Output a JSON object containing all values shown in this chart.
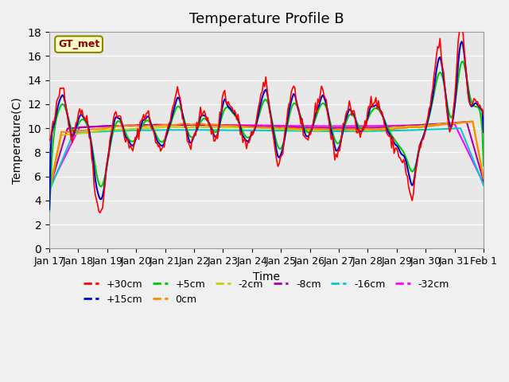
{
  "title": "Temperature Profile B",
  "xlabel": "Time",
  "ylabel": "Temperature(C)",
  "ylim": [
    0,
    18
  ],
  "yticks": [
    0,
    2,
    4,
    6,
    8,
    10,
    12,
    14,
    16,
    18
  ],
  "x_labels": [
    "Jan 17",
    "Jan 18",
    "Jan 19",
    "Jan 20",
    "Jan 21",
    "Jan 22",
    "Jan 23",
    "Jan 24",
    "Jan 25",
    "Jan 26",
    "Jan 27",
    "Jan 28",
    "Jan 29",
    "Jan 30",
    "Jan 31",
    "Feb 1"
  ],
  "annotation_text": "GT_met",
  "series_colors": {
    "+30cm": "#ff0000",
    "+15cm": "#0000cc",
    "+5cm": "#00cc00",
    "0cm": "#ff8800",
    "-2cm": "#cccc00",
    "-8cm": "#aa00aa",
    "-16cm": "#00cccc",
    "-32cm": "#ff00ff"
  },
  "background_color": "#f0f0f0",
  "plot_bg_color": "#e8e8e8",
  "title_fontsize": 13,
  "axis_fontsize": 10,
  "legend_fontsize": 9
}
